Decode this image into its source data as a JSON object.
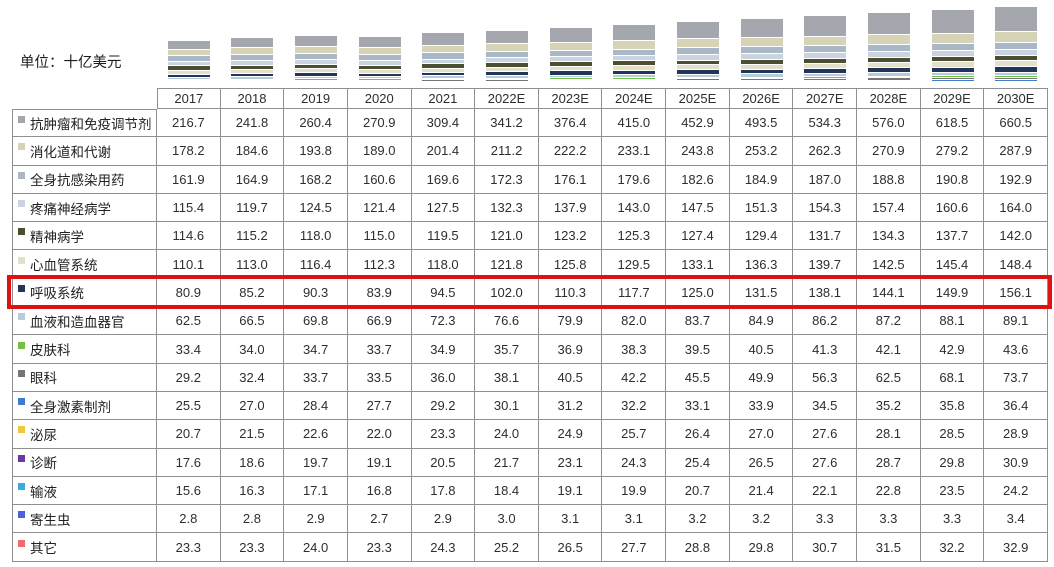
{
  "unit_label": "单位：十亿美元",
  "highlight": {
    "row_label": "呼吸系统",
    "color": "#df1212"
  },
  "chart_data": {
    "type": "bar",
    "stacked": true,
    "legend_position": "table-rows-left",
    "grid": false,
    "value_format": "one-decimal",
    "unit": "十亿美元",
    "categories": [
      "2017",
      "2018",
      "2019",
      "2020",
      "2021",
      "2022E",
      "2023E",
      "2024E",
      "2025E",
      "2026E",
      "2027E",
      "2028E",
      "2029E",
      "2030E"
    ],
    "series": [
      {
        "name": "抗肿瘤和免疫调节剂",
        "color": "#a4a7ad",
        "values": [
          216.7,
          241.8,
          260.4,
          270.9,
          309.4,
          341.2,
          376.4,
          415.0,
          452.9,
          493.5,
          534.3,
          576.0,
          618.5,
          660.5
        ]
      },
      {
        "name": "消化道和代谢",
        "color": "#d6d3b6",
        "values": [
          178.2,
          184.6,
          193.8,
          189.0,
          201.4,
          211.2,
          222.2,
          233.1,
          243.8,
          253.2,
          262.3,
          270.9,
          279.2,
          287.9
        ]
      },
      {
        "name": "全身抗感染用药",
        "color": "#a9b7c7",
        "values": [
          161.9,
          164.9,
          168.2,
          160.6,
          169.6,
          172.3,
          176.1,
          179.6,
          182.6,
          184.9,
          187.0,
          188.8,
          190.8,
          192.9
        ]
      },
      {
        "name": "疼痛神经病学",
        "color": "#c9d4e0",
        "values": [
          115.4,
          119.7,
          124.5,
          121.4,
          127.5,
          132.3,
          137.9,
          143.0,
          147.5,
          151.3,
          154.3,
          157.4,
          160.6,
          164.0
        ]
      },
      {
        "name": "精神病学",
        "color": "#4b4e30",
        "values": [
          114.6,
          115.2,
          118.0,
          115.0,
          119.5,
          121.0,
          123.2,
          125.3,
          127.4,
          129.4,
          131.7,
          134.3,
          137.7,
          142.0
        ]
      },
      {
        "name": "心血管系统",
        "color": "#e2dfca",
        "values": [
          110.1,
          113.0,
          116.4,
          112.3,
          118.0,
          121.8,
          125.8,
          129.5,
          133.1,
          136.3,
          139.7,
          142.5,
          145.4,
          148.4
        ]
      },
      {
        "name": "呼吸系统",
        "color": "#233459",
        "values": [
          80.9,
          85.2,
          90.3,
          83.9,
          94.5,
          102.0,
          110.3,
          117.7,
          125.0,
          131.5,
          138.1,
          144.1,
          149.9,
          156.1
        ]
      },
      {
        "name": "血液和造血器官",
        "color": "#b5cdda",
        "values": [
          62.5,
          66.5,
          69.8,
          66.9,
          72.3,
          76.6,
          79.9,
          82.0,
          83.7,
          84.9,
          86.2,
          87.2,
          88.1,
          89.1
        ]
      },
      {
        "name": "皮肤科",
        "color": "#72c144",
        "values": [
          33.4,
          34.0,
          34.7,
          33.7,
          34.9,
          35.7,
          36.9,
          38.3,
          39.5,
          40.5,
          41.3,
          42.1,
          42.9,
          43.6
        ]
      },
      {
        "name": "眼科",
        "color": "#757575",
        "values": [
          29.2,
          32.4,
          33.7,
          33.5,
          36.0,
          38.1,
          40.5,
          42.2,
          45.5,
          49.9,
          56.3,
          62.5,
          68.1,
          73.7
        ]
      },
      {
        "name": "全身激素制剂",
        "color": "#3e7bd3",
        "values": [
          25.5,
          27.0,
          28.4,
          27.7,
          29.2,
          30.1,
          31.2,
          32.2,
          33.1,
          33.9,
          34.5,
          35.2,
          35.8,
          36.4
        ]
      },
      {
        "name": "泌尿",
        "color": "#eec83d",
        "values": [
          20.7,
          21.5,
          22.6,
          22.0,
          23.3,
          24.0,
          24.9,
          25.7,
          26.4,
          27.0,
          27.6,
          28.1,
          28.5,
          28.9
        ]
      },
      {
        "name": "诊断",
        "color": "#6a3aa0",
        "values": [
          17.6,
          18.6,
          19.7,
          19.1,
          20.5,
          21.7,
          23.1,
          24.3,
          25.4,
          26.5,
          27.6,
          28.7,
          29.8,
          30.9
        ]
      },
      {
        "name": "输液",
        "color": "#3aa9e1",
        "values": [
          15.6,
          16.3,
          17.1,
          16.8,
          17.8,
          18.4,
          19.1,
          19.9,
          20.7,
          21.4,
          22.1,
          22.8,
          23.5,
          24.2
        ]
      },
      {
        "name": "寄生虫",
        "color": "#4a63d8",
        "values": [
          2.8,
          2.8,
          2.9,
          2.7,
          2.9,
          3.0,
          3.1,
          3.1,
          3.2,
          3.2,
          3.3,
          3.3,
          3.3,
          3.4
        ]
      },
      {
        "name": "其它",
        "color": "#ee6b6b",
        "values": [
          23.3,
          23.3,
          24.0,
          23.3,
          24.3,
          25.2,
          26.5,
          27.7,
          28.8,
          29.8,
          30.7,
          31.5,
          32.2,
          32.9
        ]
      }
    ]
  }
}
